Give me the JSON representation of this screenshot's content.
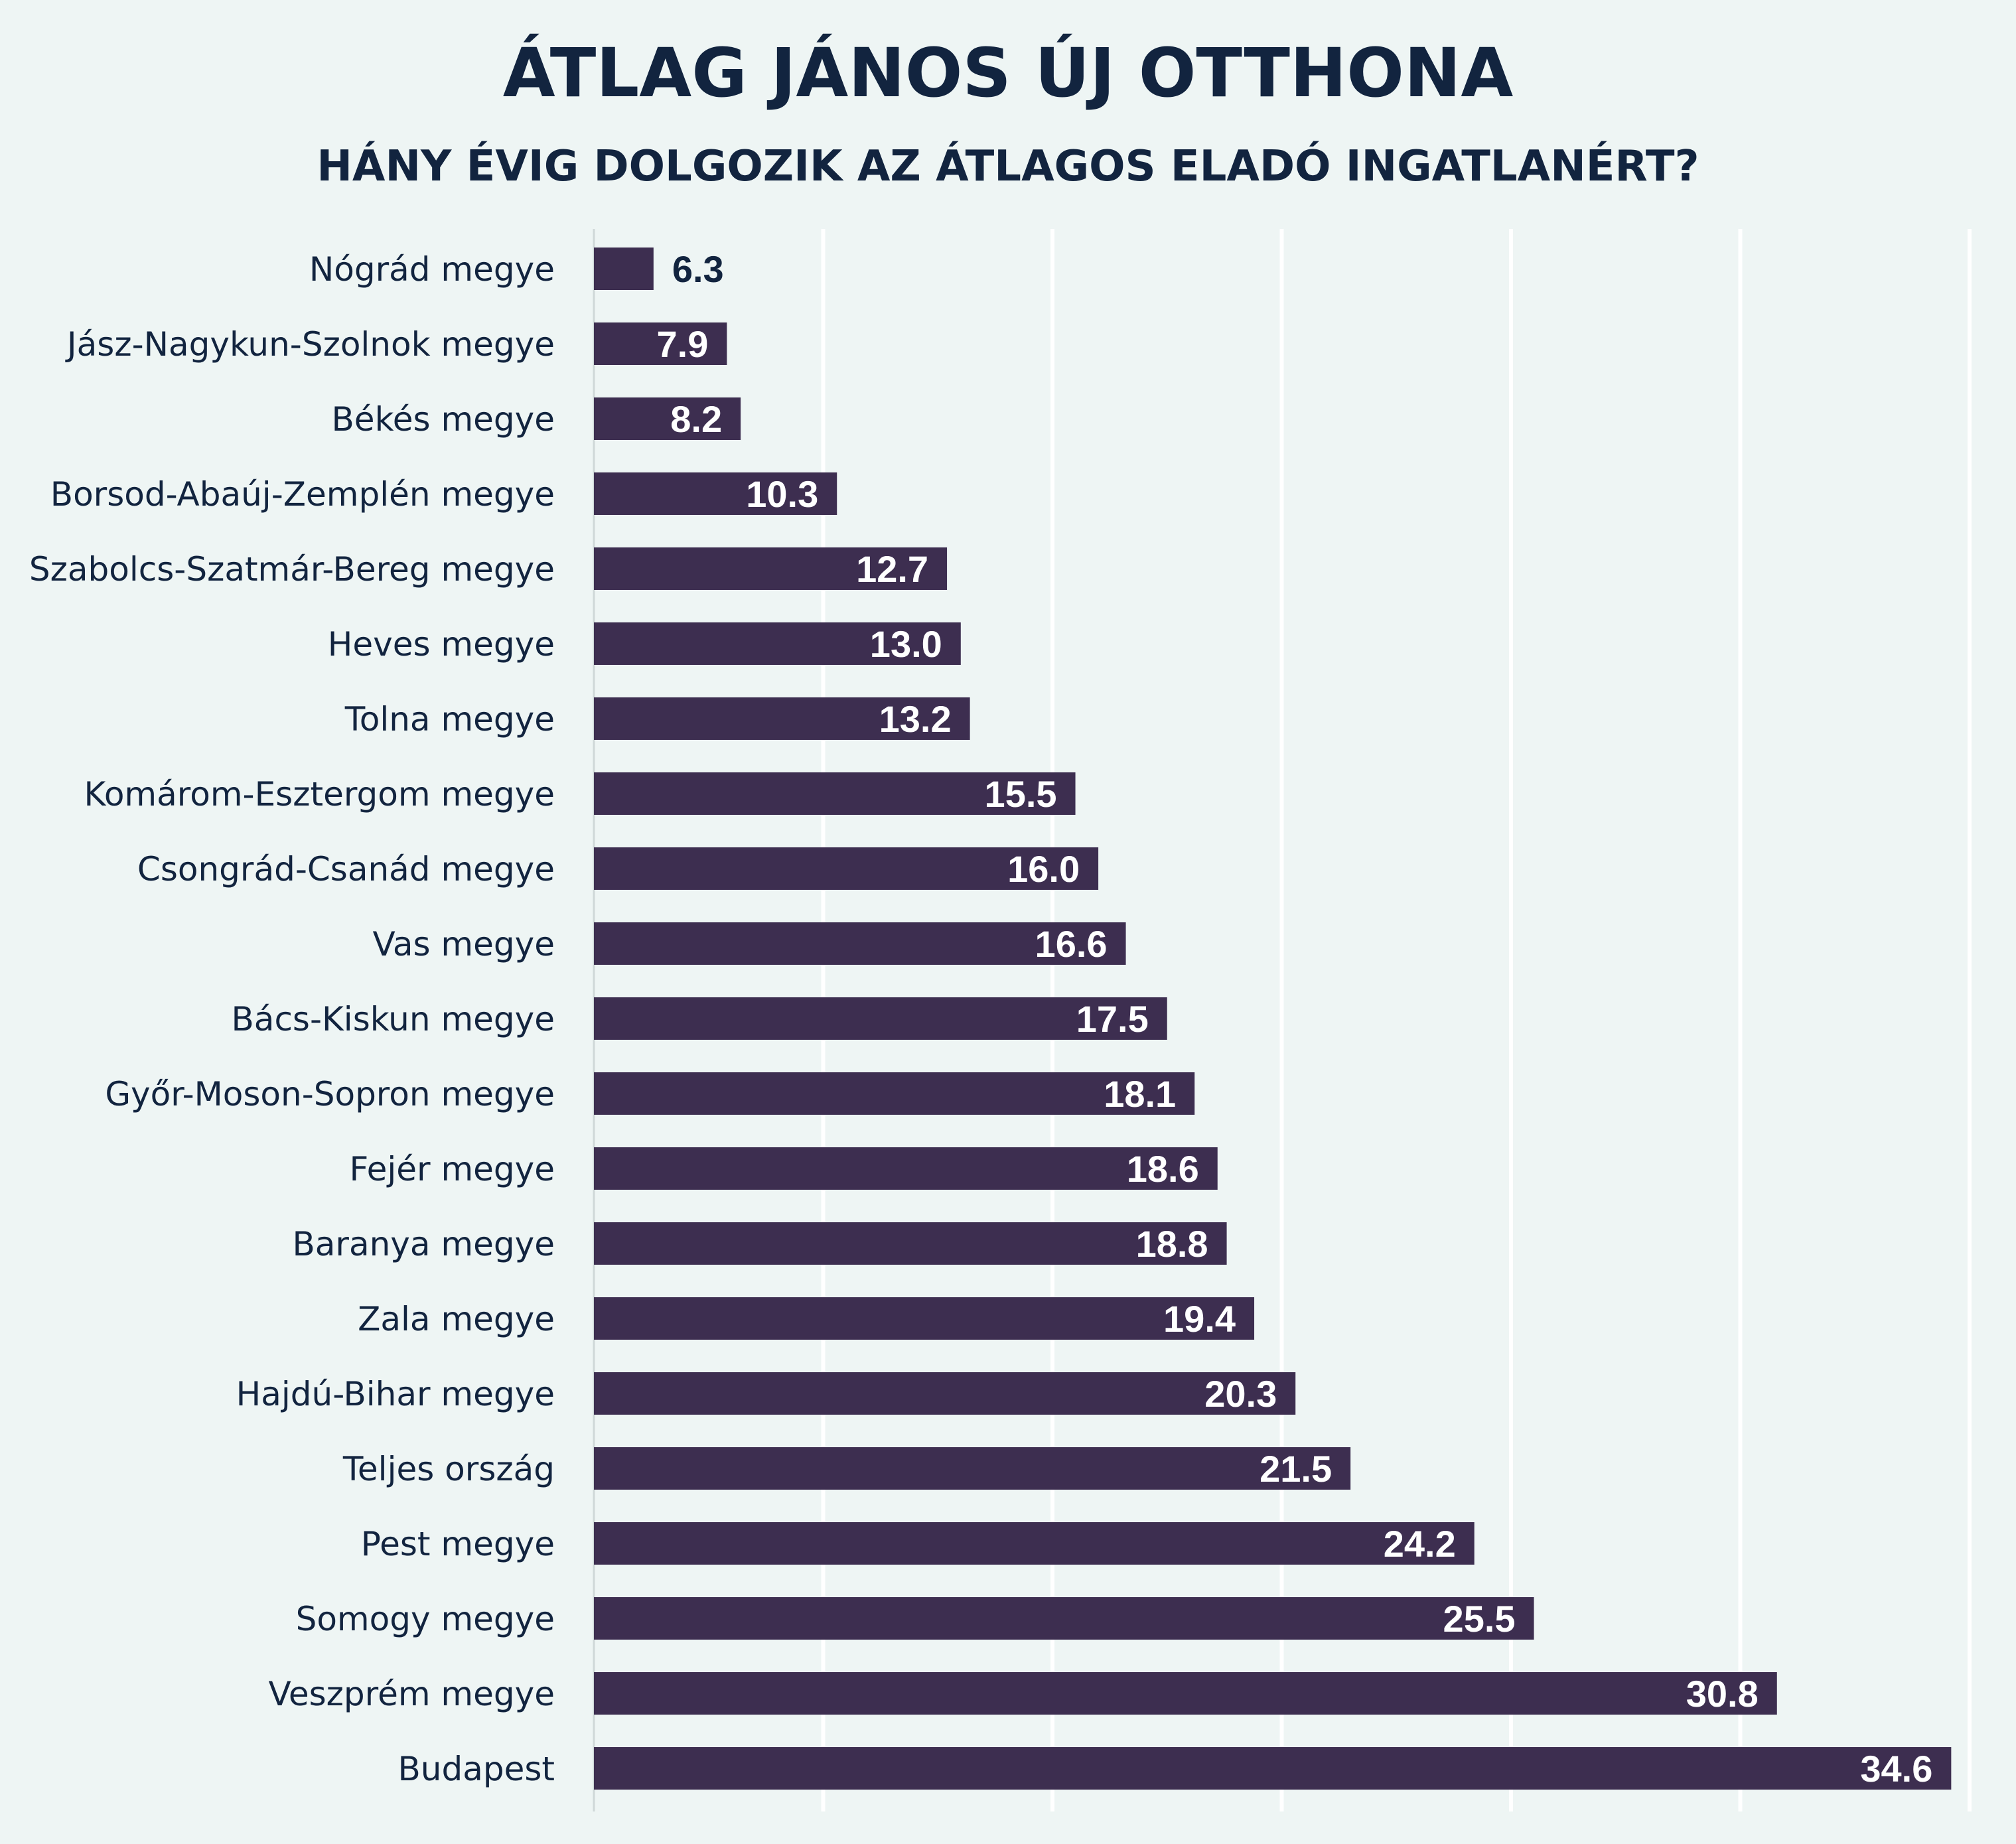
{
  "chart_data": {
    "type": "bar",
    "orientation": "horizontal",
    "title": "ÁTLAG JÁNOS ÚJ OTTHONA",
    "subtitle": "HÁNY ÉVIG DOLGOZIK AZ ÁTLAGOS ELADÓ INGATLANÉRT?",
    "categories": [
      "Nógrád megye",
      "Jász-Nagykun-Szolnok megye",
      "Békés megye",
      "Borsod-Abaúj-Zemplén megye",
      "Szabolcs-Szatmár-Bereg megye",
      "Heves megye",
      "Tolna megye",
      "Komárom-Esztergom megye",
      "Csongrád-Csanád megye",
      "Vas megye",
      "Bács-Kiskun megye",
      "Győr-Moson-Sopron megye",
      "Fejér megye",
      "Baranya megye",
      "Zala megye",
      "Hajdú-Bihar megye",
      "Teljes ország",
      "Pest megye",
      "Somogy megye",
      "Veszprém megye",
      "Budapest"
    ],
    "values": [
      6.3,
      7.9,
      8.2,
      10.3,
      12.7,
      13.0,
      13.2,
      15.5,
      16.0,
      16.6,
      17.5,
      18.1,
      18.6,
      18.8,
      19.4,
      20.3,
      21.5,
      24.2,
      25.5,
      30.8,
      34.6
    ],
    "value_labels": [
      "6.3",
      "7.9",
      "8.2",
      "10.3",
      "12.7",
      "13.0",
      "13.2",
      "15.5",
      "16.0",
      "16.6",
      "17.5",
      "18.1",
      "18.6",
      "18.8",
      "19.4",
      "20.3",
      "21.5",
      "24.2",
      "25.5",
      "30.8",
      "34.6"
    ],
    "xlabel": "",
    "ylabel": "",
    "xlim": [
      5,
      35
    ],
    "gridlines_at": [
      5,
      10,
      15,
      20,
      25,
      30,
      35
    ],
    "grid": true,
    "axis_tick_labels_shown": false,
    "legend": "none",
    "colors": {
      "background": "#EEF5F4",
      "bar": "#3D2E50",
      "gridline": "#FFFFFF",
      "axis_line": "#CFD8D8",
      "title": "#12243F",
      "label_inside": "#FFFFFF",
      "label_outside": "#12243F"
    }
  }
}
